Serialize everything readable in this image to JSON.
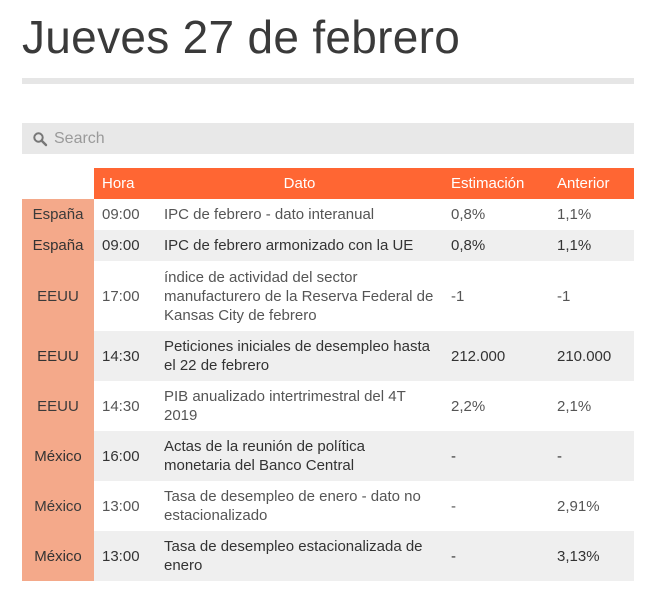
{
  "page_title": "Jueves 27 de febrero",
  "search": {
    "placeholder": "Search"
  },
  "table": {
    "headers": {
      "pais": "",
      "hora": "Hora",
      "dato": "Dato",
      "estimacion": "Estimación",
      "anterior": "Anterior"
    },
    "rows": [
      {
        "pais": "España",
        "hora": "09:00",
        "dato": "IPC de febrero - dato interanual",
        "estimacion": "0,8%",
        "anterior": "1,1%"
      },
      {
        "pais": "España",
        "hora": "09:00",
        "dato": "IPC de febrero armonizado con la UE",
        "estimacion": "0,8%",
        "anterior": "1,1%"
      },
      {
        "pais": "EEUU",
        "hora": "17:00",
        "dato": "índice de actividad del sector manufacturero de la Reserva Federal de Kansas City de febrero",
        "estimacion": "-1",
        "anterior": "-1"
      },
      {
        "pais": "EEUU",
        "hora": "14:30",
        "dato": "Peticiones iniciales de desempleo hasta el 22 de febrero",
        "estimacion": "212.000",
        "anterior": "210.000"
      },
      {
        "pais": "EEUU",
        "hora": "14:30",
        "dato": "PIB anualizado intertrimestral del 4T 2019",
        "estimacion": "2,2%",
        "anterior": "2,1%"
      },
      {
        "pais": "México",
        "hora": "16:00",
        "dato": "Actas de la reunión de política monetaria del Banco Central",
        "estimacion": "-",
        "anterior": "-"
      },
      {
        "pais": "México",
        "hora": "13:00",
        "dato": "Tasa de desempleo de enero - dato no estacionalizado",
        "estimacion": "-",
        "anterior": "2,91%"
      },
      {
        "pais": "México",
        "hora": "13:00",
        "dato": "Tasa de desempleo estacionalizada de enero",
        "estimacion": "-",
        "anterior": "3,13%"
      }
    ]
  },
  "colors": {
    "header": "#ff6633",
    "country_cell": "#f4a98a",
    "row_alt": "#efefef"
  }
}
